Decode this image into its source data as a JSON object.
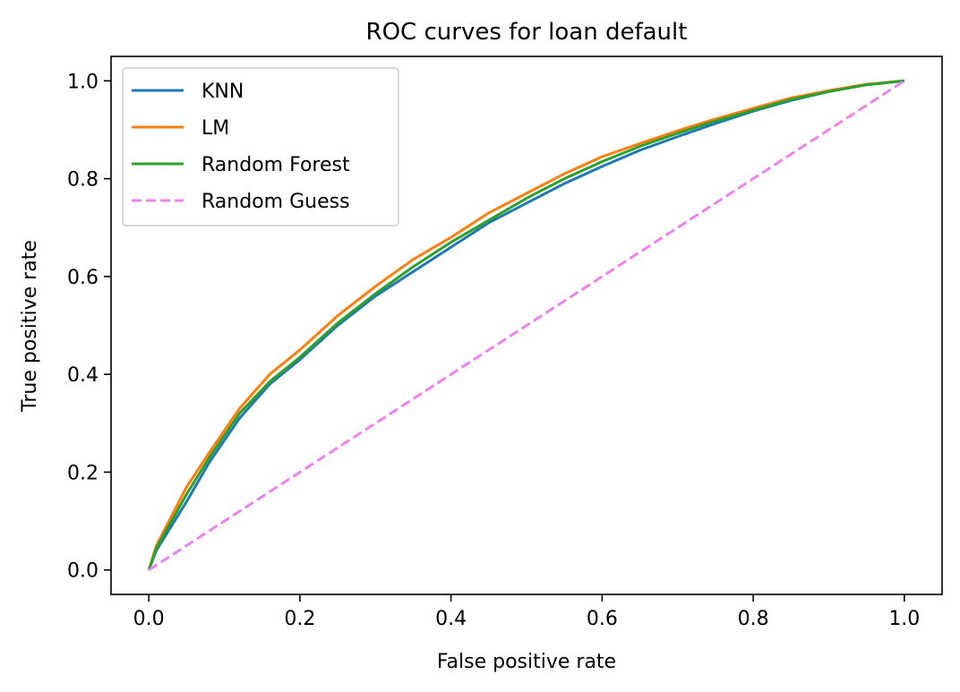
{
  "chart_data": {
    "type": "line",
    "title": "ROC curves for loan default",
    "xlabel": "False positive rate",
    "ylabel": "True positive rate",
    "xlim": [
      -0.05,
      1.05
    ],
    "ylim": [
      -0.05,
      1.05
    ],
    "xticks": [
      0.0,
      0.2,
      0.4,
      0.6,
      0.8,
      1.0
    ],
    "yticks": [
      0.0,
      0.2,
      0.4,
      0.6,
      0.8,
      1.0
    ],
    "xtick_labels": [
      "0.0",
      "0.2",
      "0.4",
      "0.6",
      "0.8",
      "1.0"
    ],
    "ytick_labels": [
      "0.0",
      "0.2",
      "0.4",
      "0.6",
      "0.8",
      "1.0"
    ],
    "grid": false,
    "legend_position": "top-left",
    "series": [
      {
        "name": "KNN",
        "color": "#1f77b4",
        "dash": "solid",
        "x": [
          0.0,
          0.01,
          0.03,
          0.05,
          0.08,
          0.12,
          0.16,
          0.2,
          0.25,
          0.3,
          0.35,
          0.4,
          0.45,
          0.5,
          0.55,
          0.6,
          0.65,
          0.7,
          0.75,
          0.8,
          0.85,
          0.9,
          0.95,
          1.0
        ],
        "y": [
          0.0,
          0.04,
          0.09,
          0.14,
          0.22,
          0.31,
          0.38,
          0.43,
          0.5,
          0.56,
          0.61,
          0.66,
          0.71,
          0.75,
          0.79,
          0.825,
          0.858,
          0.886,
          0.913,
          0.938,
          0.96,
          0.978,
          0.992,
          1.0
        ]
      },
      {
        "name": "LM",
        "color": "#ff7f0e",
        "dash": "solid",
        "x": [
          0.0,
          0.01,
          0.03,
          0.05,
          0.08,
          0.12,
          0.16,
          0.2,
          0.25,
          0.3,
          0.35,
          0.4,
          0.45,
          0.5,
          0.55,
          0.6,
          0.65,
          0.7,
          0.75,
          0.8,
          0.85,
          0.9,
          0.95,
          1.0
        ],
        "y": [
          0.0,
          0.05,
          0.11,
          0.17,
          0.24,
          0.33,
          0.4,
          0.45,
          0.52,
          0.58,
          0.635,
          0.68,
          0.73,
          0.77,
          0.81,
          0.845,
          0.872,
          0.898,
          0.922,
          0.944,
          0.965,
          0.98,
          0.993,
          1.0
        ]
      },
      {
        "name": "Random Forest",
        "color": "#2ca02c",
        "dash": "solid",
        "x": [
          0.0,
          0.01,
          0.03,
          0.05,
          0.08,
          0.12,
          0.16,
          0.2,
          0.25,
          0.3,
          0.35,
          0.4,
          0.45,
          0.5,
          0.55,
          0.6,
          0.65,
          0.7,
          0.75,
          0.8,
          0.85,
          0.9,
          0.95,
          1.0
        ],
        "y": [
          0.0,
          0.045,
          0.1,
          0.155,
          0.23,
          0.32,
          0.385,
          0.435,
          0.505,
          0.565,
          0.62,
          0.67,
          0.715,
          0.76,
          0.8,
          0.835,
          0.866,
          0.893,
          0.918,
          0.94,
          0.962,
          0.978,
          0.992,
          1.0
        ]
      },
      {
        "name": "Random Guess",
        "color": "#ee82ee",
        "dash": "dashed",
        "x": [
          0.0,
          1.0
        ],
        "y": [
          0.0,
          1.0
        ]
      }
    ]
  }
}
